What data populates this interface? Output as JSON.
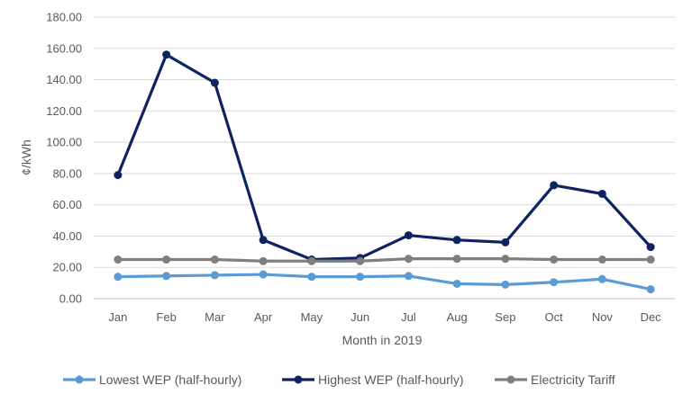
{
  "chart_data": {
    "type": "line",
    "categories": [
      "Jan",
      "Feb",
      "Mar",
      "Apr",
      "May",
      "Jun",
      "Jul",
      "Aug",
      "Sep",
      "Oct",
      "Nov",
      "Dec"
    ],
    "series": [
      {
        "name": "Lowest WEP (half-hourly)",
        "color": "#5b9bd5",
        "values": [
          14.0,
          14.5,
          15.0,
          15.5,
          14.0,
          14.0,
          14.5,
          9.5,
          9.0,
          10.5,
          12.5,
          6.0
        ]
      },
      {
        "name": "Highest WEP (half-hourly)",
        "color": "#0d2460",
        "values": [
          79.0,
          156.0,
          138.0,
          37.5,
          25.0,
          26.0,
          40.5,
          37.5,
          36.0,
          72.5,
          67.0,
          33.0
        ]
      },
      {
        "name": "Electricity Tariff",
        "color": "#7f7f7f",
        "values": [
          25.0,
          25.0,
          25.0,
          24.0,
          24.0,
          24.0,
          25.5,
          25.5,
          25.5,
          25.0,
          25.0,
          25.0
        ]
      }
    ],
    "ylim": [
      0,
      180
    ],
    "yticks": [
      "0.00",
      "20.00",
      "40.00",
      "60.00",
      "80.00",
      "100.00",
      "120.00",
      "140.00",
      "160.00",
      "180.00"
    ],
    "xlabel": "Month in 2019",
    "ylabel": "¢/kWh",
    "grid": true,
    "legend_position": "bottom"
  }
}
